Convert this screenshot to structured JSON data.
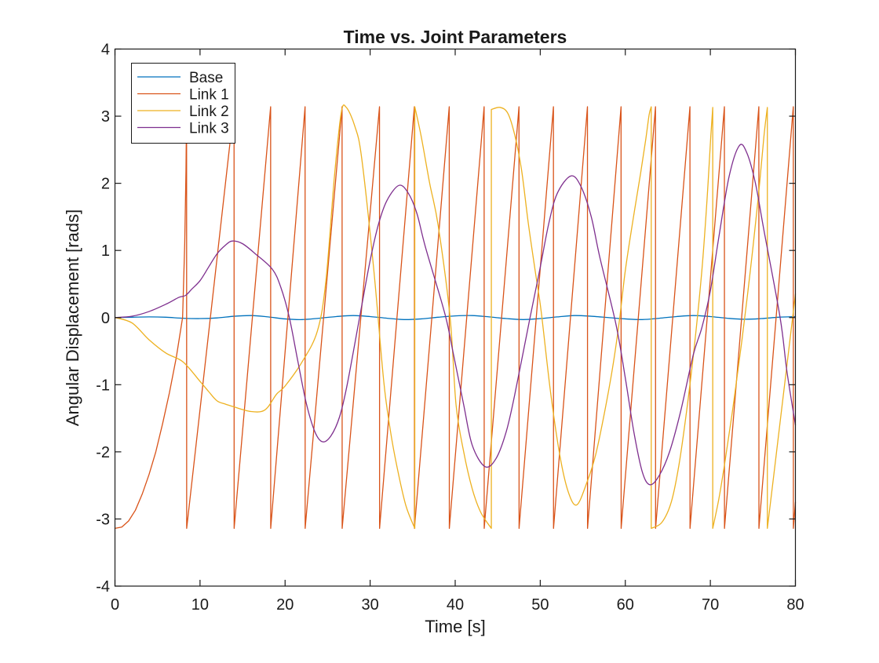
{
  "chart_data": {
    "type": "line",
    "title": "Time vs. Joint Parameters",
    "xlabel": "Time [s]",
    "ylabel": "Angular Displacement [rads]",
    "xlim": [
      0,
      80
    ],
    "ylim": [
      -4,
      4
    ],
    "xticks": [
      0,
      10,
      20,
      30,
      40,
      50,
      60,
      70,
      80
    ],
    "yticks": [
      -4,
      -3,
      -2,
      -1,
      0,
      1,
      2,
      3,
      4
    ],
    "grid": false,
    "legend_position": "northwest",
    "series": [
      {
        "name": "Base",
        "color": "#0072BD",
        "interpolation": "smooth",
        "segments": [
          [
            [
              0,
              0
            ],
            [
              2,
              0.005
            ],
            [
              4,
              0.01
            ],
            [
              6,
              0.005
            ],
            [
              8,
              -0.01
            ],
            [
              10,
              -0.015
            ],
            [
              12,
              -0.005
            ],
            [
              14,
              0.02
            ],
            [
              16,
              0.03
            ],
            [
              18,
              0.01
            ],
            [
              20,
              -0.02
            ],
            [
              22,
              -0.03
            ],
            [
              24,
              -0.01
            ],
            [
              26,
              0.015
            ],
            [
              28,
              0.03
            ],
            [
              30,
              0.015
            ],
            [
              32,
              -0.01
            ],
            [
              34,
              -0.03
            ],
            [
              36,
              -0.02
            ],
            [
              38,
              0.005
            ],
            [
              40,
              0.025
            ],
            [
              42,
              0.03
            ],
            [
              44,
              0.01
            ],
            [
              46,
              -0.015
            ],
            [
              48,
              -0.03
            ],
            [
              50,
              -0.015
            ],
            [
              52,
              0.01
            ],
            [
              54,
              0.03
            ],
            [
              56,
              0.02
            ],
            [
              58,
              0
            ],
            [
              60,
              -0.02
            ],
            [
              62,
              -0.03
            ],
            [
              64,
              -0.01
            ],
            [
              66,
              0.015
            ],
            [
              68,
              0.03
            ],
            [
              70,
              0.015
            ],
            [
              72,
              -0.01
            ],
            [
              74,
              -0.025
            ],
            [
              76,
              -0.015
            ],
            [
              78,
              0.005
            ],
            [
              80,
              0.015
            ]
          ]
        ]
      },
      {
        "name": "Link 1",
        "color": "#D95319",
        "interpolation": "linear",
        "segments": [
          [
            [
              0,
              -3.14
            ],
            [
              0.8,
              -3.12
            ],
            [
              1.6,
              -3.03
            ],
            [
              2.4,
              -2.87
            ],
            [
              3.2,
              -2.63
            ],
            [
              4.0,
              -2.34
            ],
            [
              4.8,
              -2.0
            ],
            [
              5.6,
              -1.58
            ],
            [
              6.4,
              -1.12
            ],
            [
              7.2,
              -0.6
            ],
            [
              7.95,
              0.0
            ],
            [
              8.2,
              1.1
            ],
            [
              8.35,
              2.2
            ],
            [
              8.42,
              3.14
            ],
            [
              8.43,
              -3.14
            ],
            [
              14.0,
              3.14
            ],
            [
              14.01,
              -3.14
            ],
            [
              18.3,
              3.14
            ],
            [
              18.31,
              -3.14
            ],
            [
              22.35,
              3.14
            ],
            [
              22.36,
              -3.14
            ],
            [
              26.7,
              3.14
            ],
            [
              26.71,
              -3.14
            ],
            [
              31.1,
              3.14
            ],
            [
              31.11,
              -3.14
            ],
            [
              35.2,
              3.14
            ],
            [
              35.21,
              -3.14
            ],
            [
              39.3,
              3.14
            ],
            [
              39.31,
              -3.14
            ],
            [
              43.4,
              3.14
            ],
            [
              43.41,
              -3.14
            ],
            [
              47.5,
              3.14
            ],
            [
              47.51,
              -3.14
            ],
            [
              51.55,
              3.14
            ],
            [
              51.56,
              -3.14
            ],
            [
              55.55,
              3.14
            ],
            [
              55.56,
              -3.14
            ],
            [
              59.5,
              3.14
            ],
            [
              59.51,
              -3.14
            ],
            [
              63.55,
              3.14
            ],
            [
              63.56,
              -3.14
            ],
            [
              67.6,
              3.14
            ],
            [
              67.61,
              -3.14
            ],
            [
              71.65,
              3.14
            ],
            [
              71.66,
              -3.14
            ],
            [
              75.7,
              3.14
            ],
            [
              75.71,
              -3.14
            ],
            [
              79.75,
              3.14
            ],
            [
              79.76,
              -3.14
            ],
            [
              80,
              -2.75
            ]
          ]
        ]
      },
      {
        "name": "Link 2",
        "color": "#EDB120",
        "interpolation": "smooth",
        "segments": [
          [
            [
              0,
              0
            ],
            [
              2,
              -0.08
            ],
            [
              4,
              -0.33
            ],
            [
              6,
              -0.53
            ],
            [
              8,
              -0.66
            ],
            [
              10,
              -0.95
            ],
            [
              11,
              -1.1
            ],
            [
              12,
              -1.24
            ],
            [
              13,
              -1.29
            ],
            [
              14,
              -1.33
            ],
            [
              15,
              -1.37
            ],
            [
              16,
              -1.4
            ],
            [
              17.2,
              -1.4
            ],
            [
              18,
              -1.33
            ],
            [
              19,
              -1.14
            ],
            [
              20,
              -1.02
            ],
            [
              22,
              -0.66
            ],
            [
              23.8,
              -0.2
            ],
            [
              24.8,
              0.55
            ],
            [
              25.8,
              2.1
            ],
            [
              26.6,
              3.05
            ],
            [
              27.2,
              3.13
            ],
            [
              28.2,
              2.85
            ],
            [
              29,
              2.38
            ],
            [
              30.4,
              0.75
            ],
            [
              31.6,
              -0.95
            ],
            [
              32.4,
              -1.7
            ],
            [
              33.2,
              -2.25
            ],
            [
              34.2,
              -2.8
            ],
            [
              35.25,
              -3.14
            ]
          ],
          [
            [
              35.25,
              3.14
            ],
            [
              36,
              2.7
            ],
            [
              37,
              2.0
            ],
            [
              38,
              1.37
            ],
            [
              39.4,
              0.0
            ],
            [
              40.1,
              -1.3
            ],
            [
              41,
              -2.0
            ],
            [
              42,
              -2.55
            ],
            [
              43,
              -2.9
            ],
            [
              44.25,
              -3.14
            ]
          ],
          [
            [
              44.25,
              3.1
            ],
            [
              45.3,
              3.13
            ],
            [
              46.2,
              3.04
            ],
            [
              47.0,
              2.72
            ],
            [
              47.8,
              2.2
            ],
            [
              48.6,
              1.4
            ],
            [
              49.4,
              0.7
            ],
            [
              50.1,
              0.1
            ],
            [
              51.2,
              -1.1
            ],
            [
              52.3,
              -2.05
            ],
            [
              53.3,
              -2.6
            ],
            [
              54.3,
              -2.79
            ],
            [
              55.5,
              -2.45
            ],
            [
              56.5,
              -2.05
            ],
            [
              57.5,
              -1.45
            ],
            [
              58.5,
              -0.75
            ],
            [
              59.3,
              -0.05
            ],
            [
              60,
              0.7
            ],
            [
              60.9,
              1.45
            ],
            [
              61.8,
              2.15
            ],
            [
              62.4,
              2.65
            ],
            [
              62.8,
              3.02
            ],
            [
              63.05,
              3.14
            ]
          ],
          [
            [
              63.05,
              -3.14
            ],
            [
              64.3,
              -3.05
            ],
            [
              65.4,
              -2.75
            ],
            [
              66.3,
              -2.2
            ],
            [
              67.2,
              -1.4
            ],
            [
              68.1,
              -0.45
            ],
            [
              69.0,
              0.7
            ],
            [
              69.6,
              1.74
            ],
            [
              70.05,
              2.7
            ],
            [
              70.28,
              3.13
            ]
          ],
          [
            [
              70.28,
              -3.14
            ],
            [
              71,
              -2.7
            ],
            [
              71.7,
              -2.16
            ],
            [
              72.7,
              -1.3
            ],
            [
              73.7,
              -0.35
            ],
            [
              74.7,
              0.7
            ],
            [
              75.6,
              1.75
            ],
            [
              76.3,
              2.7
            ],
            [
              76.7,
              3.13
            ]
          ],
          [
            [
              76.7,
              -3.14
            ],
            [
              77.5,
              -2.3
            ],
            [
              78.3,
              -1.45
            ],
            [
              79.2,
              -0.5
            ],
            [
              80,
              0.35
            ]
          ]
        ]
      },
      {
        "name": "Link 3",
        "color": "#7E2F8E",
        "interpolation": "smooth",
        "segments": [
          [
            [
              0,
              0
            ],
            [
              2,
              0.02
            ],
            [
              4,
              0.09
            ],
            [
              6,
              0.2
            ],
            [
              7.5,
              0.3
            ],
            [
              8.3,
              0.33
            ],
            [
              9,
              0.42
            ],
            [
              10,
              0.55
            ],
            [
              11,
              0.75
            ],
            [
              12,
              0.95
            ],
            [
              13,
              1.08
            ],
            [
              13.8,
              1.14
            ],
            [
              15,
              1.1
            ],
            [
              16.5,
              0.95
            ],
            [
              18.5,
              0.72
            ],
            [
              19.5,
              0.45
            ],
            [
              20.5,
              0.0
            ],
            [
              21.5,
              -0.65
            ],
            [
              22.5,
              -1.28
            ],
            [
              23.5,
              -1.7
            ],
            [
              24.4,
              -1.85
            ],
            [
              25.4,
              -1.76
            ],
            [
              26.4,
              -1.48
            ],
            [
              27.3,
              -1.0
            ],
            [
              28.9,
              0.1
            ],
            [
              30,
              0.85
            ],
            [
              31,
              1.4
            ],
            [
              32,
              1.75
            ],
            [
              33.4,
              1.97
            ],
            [
              34.5,
              1.85
            ],
            [
              35.5,
              1.55
            ],
            [
              36.5,
              1.05
            ],
            [
              38.8,
              0.05
            ],
            [
              39.8,
              -0.55
            ],
            [
              41,
              -1.3
            ],
            [
              42,
              -1.9
            ],
            [
              43.5,
              -2.22
            ],
            [
              44.8,
              -2.1
            ],
            [
              46,
              -1.7
            ],
            [
              47,
              -1.15
            ],
            [
              48.8,
              0.0
            ],
            [
              50,
              0.75
            ],
            [
              51,
              1.4
            ],
            [
              52,
              1.85
            ],
            [
              53.6,
              2.11
            ],
            [
              54.8,
              1.95
            ],
            [
              56,
              1.5
            ],
            [
              57,
              0.9
            ],
            [
              58.9,
              -0.1
            ],
            [
              60,
              -0.9
            ],
            [
              61,
              -1.7
            ],
            [
              62,
              -2.3
            ],
            [
              62.9,
              -2.49
            ],
            [
              64,
              -2.35
            ],
            [
              65.2,
              -2.0
            ],
            [
              66.5,
              -1.4
            ],
            [
              68,
              -0.55
            ],
            [
              69,
              -0.15
            ],
            [
              70,
              0.4
            ],
            [
              71,
              1.2
            ],
            [
              72.2,
              2.1
            ],
            [
              73.4,
              2.56
            ],
            [
              74.3,
              2.45
            ],
            [
              75.3,
              2.0
            ],
            [
              76.3,
              1.3
            ],
            [
              78.2,
              0.0
            ],
            [
              79,
              -0.8
            ],
            [
              80,
              -1.6
            ]
          ]
        ]
      }
    ]
  }
}
